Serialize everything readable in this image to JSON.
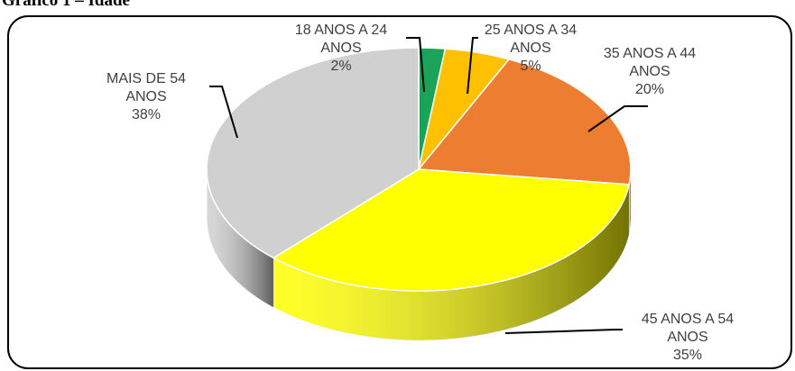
{
  "chart_data": {
    "type": "pie3d",
    "title": "Gráfico 1 – Idade",
    "categories": [
      "18 ANOS A 24 ANOS",
      "25 ANOS A 34 ANOS",
      "35 ANOS A 44 ANOS",
      "45 ANOS A 54 ANOS",
      "MAIS DE 54 ANOS"
    ],
    "values": [
      2,
      5,
      20,
      35,
      38
    ],
    "value_labels": [
      "2%",
      "5%",
      "20%",
      "35%",
      "38%"
    ],
    "colors": [
      "#1ca35a",
      "#ffc000",
      "#ed7d31",
      "#ffff00",
      "#d0d0d0"
    ]
  }
}
